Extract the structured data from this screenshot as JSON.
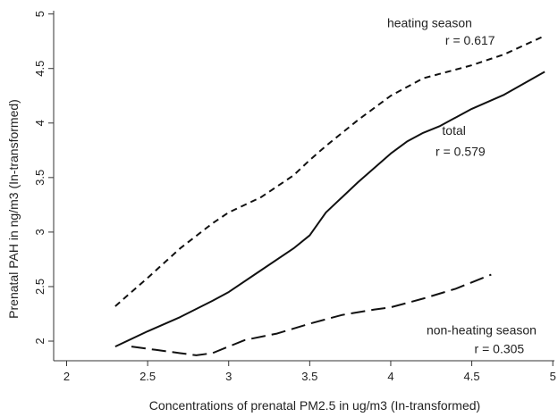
{
  "chart_data": {
    "type": "line",
    "title": "",
    "xlabel": "Concentrations of prenatal PM2.5 in ug/m3 (In-transformed)",
    "ylabel": "Prenatal PAH in ng/m3 (In-transformed)",
    "xlim": [
      1.92,
      5.01
    ],
    "ylim": [
      1.82,
      5.03
    ],
    "x_ticks": [
      "2",
      "2.5",
      "3",
      "3.5",
      "4",
      "4.5",
      "5"
    ],
    "y_ticks": [
      "2",
      "2.5",
      "3",
      "3.5",
      "4",
      "4.5",
      "5"
    ],
    "grid": false,
    "legend": "none",
    "series": [
      {
        "key": "heating",
        "line_style": "short-dash",
        "color": "#111111",
        "x": [
          2.3,
          2.5,
          2.7,
          2.9,
          3.0,
          3.2,
          3.4,
          3.5,
          3.6,
          3.8,
          4.0,
          4.2,
          4.3,
          4.5,
          4.7,
          4.95
        ],
        "y": [
          2.32,
          2.58,
          2.85,
          3.08,
          3.18,
          3.32,
          3.52,
          3.66,
          3.79,
          4.03,
          4.25,
          4.41,
          4.45,
          4.53,
          4.63,
          4.8
        ]
      },
      {
        "key": "total",
        "line_style": "solid",
        "color": "#111111",
        "x": [
          2.3,
          2.5,
          2.7,
          2.9,
          3.0,
          3.2,
          3.4,
          3.5,
          3.6,
          3.8,
          4.0,
          4.1,
          4.2,
          4.3,
          4.5,
          4.7,
          4.95
        ],
        "y": [
          1.95,
          2.09,
          2.22,
          2.37,
          2.45,
          2.65,
          2.85,
          2.97,
          3.18,
          3.46,
          3.72,
          3.83,
          3.91,
          3.97,
          4.13,
          4.26,
          4.47
        ]
      },
      {
        "key": "nonheating",
        "line_style": "long-dash",
        "color": "#111111",
        "x": [
          2.4,
          2.55,
          2.7,
          2.8,
          2.9,
          3.0,
          3.1,
          3.3,
          3.5,
          3.7,
          3.9,
          4.0,
          4.2,
          4.4,
          4.62
        ],
        "y": [
          1.95,
          1.92,
          1.89,
          1.87,
          1.89,
          1.95,
          2.01,
          2.07,
          2.16,
          2.24,
          2.29,
          2.31,
          2.39,
          2.48,
          2.61
        ]
      }
    ],
    "annotations": {
      "heating_name": "heating season",
      "heating_r": "r = 0.617",
      "total_name": "total",
      "total_r": "r = 0.579",
      "nonheating_name": "non-heating season",
      "nonheating_r": "r = 0.305"
    }
  }
}
